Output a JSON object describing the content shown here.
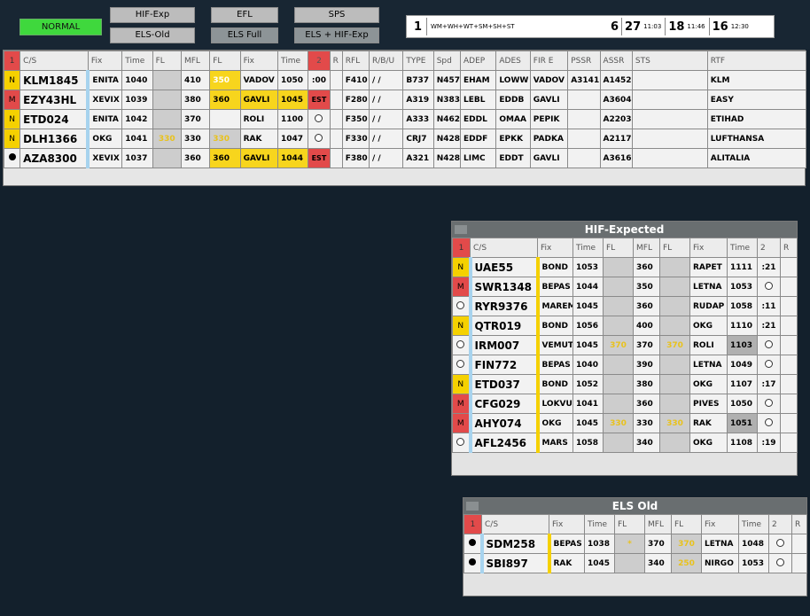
{
  "status": {
    "mode": "NORMAL"
  },
  "buttons": {
    "hif_exp": "HIF-Exp",
    "els_old": "ELS-Old",
    "efl": "EFL",
    "els_full": "ELS Full",
    "sps": "SPS",
    "els_hif": "ELS + HIF-Exp"
  },
  "infobar": {
    "n": "1",
    "sequence": "WM+WH+WT+SM+SH+ST",
    "c1": "6",
    "c2": "27",
    "t2": "11:03",
    "c3": "18",
    "t3": "11:46",
    "c4": "16",
    "t4": "12:30"
  },
  "main": {
    "headers": [
      "1",
      "C/S",
      "Fix",
      "Time",
      "FL",
      "MFL",
      "FL",
      "Fix",
      "Time",
      "2",
      "R",
      "RFL",
      "R/B/U",
      "TYPE",
      "Spd",
      "ADEP",
      "ADES",
      "FIR E",
      "PSSR",
      "ASSR",
      "STS",
      "RTF"
    ],
    "rows": [
      {
        "cat": "N",
        "cs": "KLM1845",
        "fix": "ENITA",
        "time": "1040",
        "fl": "",
        "mfl": "410",
        "fl2": "350",
        "fix2": "VADOV",
        "time2": "1050",
        "c2": ":00",
        "r": "",
        "rfl": "F410",
        "rbu": "/ /",
        "type": "B737",
        "spd": "N457",
        "adep": "EHAM",
        "ades": "LOWW",
        "fir": "VADOV",
        "pssr": "A3141",
        "assr": "A1452",
        "sts": "",
        "rtf": "KLM"
      },
      {
        "cat": "M",
        "cs": "EZY43HL",
        "fix": "XEVIX",
        "time": "1039",
        "fl": "",
        "mfl": "380",
        "fl2": "360",
        "fix2": "GAVLI",
        "time2": "1045",
        "c2": "EST",
        "r": "",
        "rfl": "F280",
        "rbu": "/ /",
        "type": "A319",
        "spd": "N383",
        "adep": "LEBL",
        "ades": "EDDB",
        "fir": "GAVLI",
        "pssr": "",
        "assr": "A3604",
        "sts": "",
        "rtf": "EASY"
      },
      {
        "cat": "N",
        "cs": "ETD024",
        "fix": "ENITA",
        "time": "1042",
        "fl": "",
        "mfl": "370",
        "fl2": "",
        "fix2": "ROLI",
        "time2": "1100",
        "c2": "",
        "r": "",
        "rfl": "F350",
        "rbu": "/ /",
        "type": "A333",
        "spd": "N462",
        "adep": "EDDL",
        "ades": "OMAA",
        "fir": "PEPIK",
        "pssr": "",
        "assr": "A2203",
        "sts": "",
        "rtf": "ETIHAD"
      },
      {
        "cat": "N",
        "cs": "DLH1366",
        "fix": "OKG",
        "time": "1041",
        "fl": "330",
        "mfl": "330",
        "fl2": "330",
        "fix2": "RAK",
        "time2": "1047",
        "c2": "",
        "r": "",
        "rfl": "F330",
        "rbu": "/ /",
        "type": "CRJ7",
        "spd": "N428",
        "adep": "EDDF",
        "ades": "EPKK",
        "fir": "PADKA",
        "pssr": "",
        "assr": "A2117",
        "sts": "",
        "rtf": "LUFTHANSA"
      },
      {
        "cat": "",
        "cs": "AZA8300",
        "fix": "XEVIX",
        "time": "1037",
        "fl": "",
        "mfl": "360",
        "fl2": "360",
        "fix2": "GAVLI",
        "time2": "1044",
        "c2": "EST",
        "r": "",
        "rfl": "F380",
        "rbu": "/ /",
        "type": "A321",
        "spd": "N428",
        "adep": "LIMC",
        "ades": "EDDT",
        "fir": "GAVLI",
        "pssr": "",
        "assr": "A3616",
        "sts": "",
        "rtf": "ALITALIA"
      }
    ]
  },
  "hif": {
    "title": "HIF-Expected",
    "headers": [
      "1",
      "C/S",
      "Fix",
      "Time",
      "FL",
      "MFL",
      "FL",
      "Fix",
      "Time",
      "2",
      "R"
    ],
    "rows": [
      {
        "cat": "N",
        "cs": "UAE55",
        "fix": "BOND",
        "time": "1053",
        "fl": "",
        "mfl": "360",
        "fl2": "",
        "fix2": "RAPET",
        "time2": "1111",
        "c2": ":21"
      },
      {
        "cat": "M",
        "cs": "SWR1348",
        "fix": "BEPAS",
        "time": "1044",
        "fl": "",
        "mfl": "350",
        "fl2": "",
        "fix2": "LETNA",
        "time2": "1053",
        "c2": ""
      },
      {
        "cat": "",
        "cs": "RYR9376",
        "fix": "MAREM",
        "time": "1045",
        "fl": "",
        "mfl": "360",
        "fl2": "",
        "fix2": "RUDAP",
        "time2": "1058",
        "c2": ":11"
      },
      {
        "cat": "N",
        "cs": "QTR019",
        "fix": "BOND",
        "time": "1056",
        "fl": "",
        "mfl": "400",
        "fl2": "",
        "fix2": "OKG",
        "time2": "1110",
        "c2": ":21"
      },
      {
        "cat": "",
        "cs": "IRM007",
        "fix": "VEMUT",
        "time": "1045",
        "fl": "370",
        "mfl": "370",
        "fl2": "370",
        "fix2": "ROLI",
        "time2": "1103",
        "c2": ""
      },
      {
        "cat": "",
        "cs": "FIN772",
        "fix": "BEPAS",
        "time": "1040",
        "fl": "",
        "mfl": "390",
        "fl2": "",
        "fix2": "LETNA",
        "time2": "1049",
        "c2": ""
      },
      {
        "cat": "N",
        "cs": "ETD037",
        "fix": "BOND",
        "time": "1052",
        "fl": "",
        "mfl": "380",
        "fl2": "",
        "fix2": "OKG",
        "time2": "1107",
        "c2": ":17"
      },
      {
        "cat": "M",
        "cs": "CFG029",
        "fix": "LOKVU",
        "time": "1041",
        "fl": "",
        "mfl": "360",
        "fl2": "",
        "fix2": "PIVES",
        "time2": "1050",
        "c2": ""
      },
      {
        "cat": "M",
        "cs": "AHY074",
        "fix": "OKG",
        "time": "1045",
        "fl": "330",
        "mfl": "330",
        "fl2": "330",
        "fix2": "RAK",
        "time2": "1051",
        "c2": ""
      },
      {
        "cat": "",
        "cs": "AFL2456",
        "fix": "MARS",
        "time": "1058",
        "fl": "",
        "mfl": "340",
        "fl2": "",
        "fix2": "OKG",
        "time2": "1108",
        "c2": ":19"
      }
    ]
  },
  "els": {
    "title": "ELS Old",
    "headers": [
      "1",
      "C/S",
      "Fix",
      "Time",
      "FL",
      "MFL",
      "FL",
      "Fix",
      "Time",
      "2",
      "R"
    ],
    "rows": [
      {
        "cat": "",
        "cs": "SDM258",
        "fix": "BEPAS",
        "time": "1038",
        "fl": "*",
        "mfl": "370",
        "fl2": "370",
        "fix2": "LETNA",
        "time2": "1048",
        "c2": ""
      },
      {
        "cat": "",
        "cs": "SBI897",
        "fix": "RAK",
        "time": "1045",
        "fl": "",
        "mfl": "340",
        "fl2": "250",
        "fix2": "NIRGO",
        "time2": "1053",
        "c2": ""
      }
    ]
  }
}
